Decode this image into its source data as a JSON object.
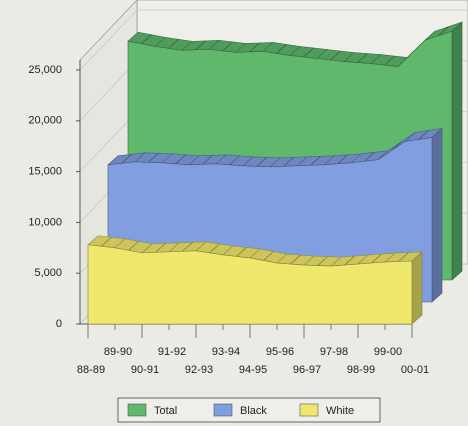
{
  "chart_data": {
    "type": "area",
    "categories": [
      "88-89",
      "89-90",
      "90-91",
      "91-92",
      "92-93",
      "93-94",
      "94-95",
      "95-96",
      "96-97",
      "97-98",
      "98-99",
      "99-00",
      "00-01"
    ],
    "series": [
      {
        "name": "Total",
        "color": "#5fb86c",
        "values": [
          23500,
          23000,
          22600,
          22700,
          22400,
          22500,
          22100,
          21800,
          21500,
          21300,
          21000,
          23600,
          24500
        ]
      },
      {
        "name": "Black",
        "color": "#819fe0",
        "values": [
          13500,
          13800,
          13700,
          13500,
          13600,
          13400,
          13300,
          13400,
          13500,
          13700,
          14000,
          15800,
          16200
        ]
      },
      {
        "name": "White",
        "color": "#efe86c",
        "values": [
          7800,
          7500,
          7000,
          7100,
          7200,
          6800,
          6500,
          6000,
          5800,
          5700,
          5900,
          6100,
          6200
        ]
      }
    ],
    "ylim": [
      0,
      25000
    ],
    "yticks": [
      0,
      {
        "value": 5000,
        "label": "5,000"
      },
      {
        "value": 10000,
        "label": "10,000"
      },
      {
        "value": 15000,
        "label": "15,000"
      },
      {
        "value": 20000,
        "label": "20,000"
      },
      {
        "value": 25000,
        "label": "25,000"
      }
    ],
    "grid": true,
    "legend": "bottom"
  }
}
